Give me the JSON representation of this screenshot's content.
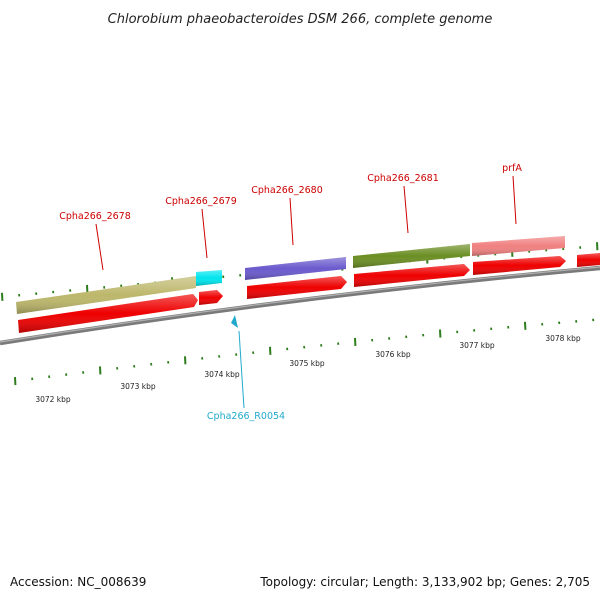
{
  "title": "Chlorobium phaeobacteroides DSM 266, complete genome",
  "colors": {
    "background": "#ffffff",
    "backbone": "#8a8a8a",
    "tick": "#2e7d1e",
    "cds": "#ee0000",
    "gene_label": "#cc0000",
    "rna_label": "#22aacc"
  },
  "kbp_labels": [
    "3072 kbp",
    "3073 kbp",
    "3074 kbp",
    "3075 kbp",
    "3076 kbp",
    "3077 kbp",
    "3078 kbp"
  ],
  "genes": [
    {
      "name": "Cpha266_2678",
      "feature_color": "#bdb76b"
    },
    {
      "name": "Cpha266_2679",
      "feature_color": "#00e5ee"
    },
    {
      "name": "Cpha266_2680",
      "feature_color": "#6a5acd"
    },
    {
      "name": "Cpha266_2681",
      "feature_color": "#6b8e23"
    },
    {
      "name": "prfA",
      "feature_color": "#f08080"
    }
  ],
  "rna_features": [
    {
      "name": "Cpha266_R0054"
    }
  ],
  "footer": {
    "accession": "Accession: NC_008639",
    "topology": "Topology: circular; Length: 3,133,902 bp; Genes: 2,705"
  }
}
